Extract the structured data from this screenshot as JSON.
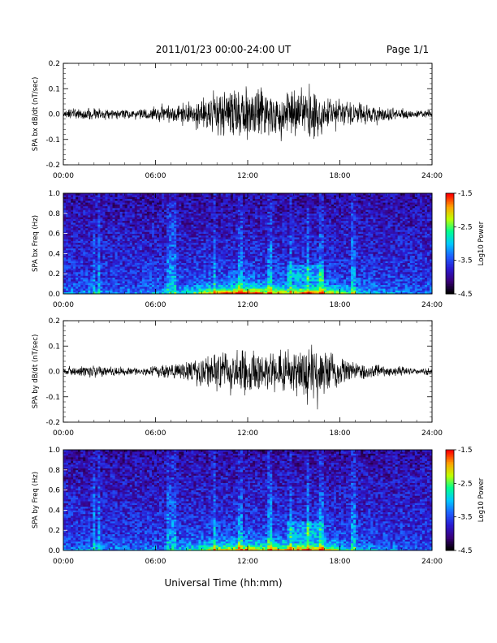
{
  "header": {
    "title": "2011/01/23  00:00-24:00 UT",
    "page": "Page 1/1"
  },
  "chart_data": [
    {
      "type": "line",
      "ylabel": "SPA bx dB/dt (nT/sec)",
      "xlim": [
        "00:00",
        "24:00"
      ],
      "ylim": [
        -0.2,
        0.2
      ],
      "x_ticks": [
        "00:00",
        "06:00",
        "12:00",
        "18:00",
        "24:00"
      ],
      "y_ticks": [
        "0.2",
        "0.1",
        "0.0",
        "-0.1",
        "-0.2"
      ],
      "envelope": {
        "hours": [
          0,
          1,
          2,
          3,
          4,
          5,
          6,
          7,
          8,
          9,
          10,
          11,
          12,
          13,
          14,
          15,
          16,
          17,
          18,
          19,
          20,
          21,
          22,
          23,
          24
        ],
        "amplitude": [
          0.02,
          0.025,
          0.03,
          0.025,
          0.025,
          0.025,
          0.03,
          0.04,
          0.05,
          0.08,
          0.1,
          0.12,
          0.13,
          0.11,
          0.1,
          0.1,
          0.12,
          0.1,
          0.07,
          0.05,
          0.04,
          0.03,
          0.025,
          0.02,
          0.02
        ]
      },
      "trace_color": "#000000"
    },
    {
      "type": "heatmap",
      "ylabel": "SPA bx Freq (Hz)",
      "xlim": [
        "00:00",
        "24:00"
      ],
      "ylim": [
        0.0,
        1.0
      ],
      "x_ticks": [
        "00:00",
        "06:00",
        "12:00",
        "18:00",
        "24:00"
      ],
      "y_ticks": [
        "1.0",
        "0.8",
        "0.6",
        "0.4",
        "0.2",
        "0.0"
      ],
      "colorbar": {
        "label": "Log10 Power",
        "range": [
          -4.5,
          -1.5
        ],
        "ticks": [
          "-1.5",
          "-2.5",
          "-3.5",
          "-4.5"
        ]
      },
      "colorscale": [
        "#000000",
        "#3a007a",
        "#2a1ad0",
        "#1e60ff",
        "#00c8ff",
        "#00ff90",
        "#c0ff00",
        "#ffa000",
        "#ff0000"
      ]
    },
    {
      "type": "line",
      "ylabel": "SPA by dB/dt (nT/sec)",
      "xlim": [
        "00:00",
        "24:00"
      ],
      "ylim": [
        -0.2,
        0.2
      ],
      "x_ticks": [
        "00:00",
        "06:00",
        "12:00",
        "18:00",
        "24:00"
      ],
      "y_ticks": [
        "0.2",
        "0.1",
        "0.0",
        "-0.1",
        "-0.2"
      ],
      "envelope": {
        "hours": [
          0,
          1,
          2,
          3,
          4,
          5,
          6,
          7,
          8,
          9,
          10,
          11,
          12,
          13,
          14,
          15,
          16,
          17,
          18,
          19,
          20,
          21,
          22,
          23,
          24
        ],
        "amplitude": [
          0.015,
          0.02,
          0.03,
          0.025,
          0.02,
          0.02,
          0.025,
          0.03,
          0.05,
          0.07,
          0.09,
          0.1,
          0.11,
          0.09,
          0.1,
          0.11,
          0.12,
          0.1,
          0.06,
          0.04,
          0.03,
          0.025,
          0.02,
          0.015,
          0.015
        ]
      },
      "trace_color": "#000000"
    },
    {
      "type": "heatmap",
      "ylabel": "SPA by Freq (Hz)",
      "xlim": [
        "00:00",
        "24:00"
      ],
      "ylim": [
        0.0,
        1.0
      ],
      "x_ticks": [
        "00:00",
        "06:00",
        "12:00",
        "18:00",
        "24:00"
      ],
      "y_ticks": [
        "1.0",
        "0.8",
        "0.6",
        "0.4",
        "0.2",
        "0.0"
      ],
      "colorbar": {
        "label": "Log10 Power",
        "range": [
          -4.5,
          -1.5
        ],
        "ticks": [
          "-1.5",
          "-2.5",
          "-3.5",
          "-4.5"
        ]
      },
      "colorscale": [
        "#000000",
        "#3a007a",
        "#2a1ad0",
        "#1e60ff",
        "#00c8ff",
        "#00ff90",
        "#c0ff00",
        "#ffa000",
        "#ff0000"
      ]
    }
  ],
  "footer": {
    "xlabel": "Universal Time (hh:mm)"
  }
}
